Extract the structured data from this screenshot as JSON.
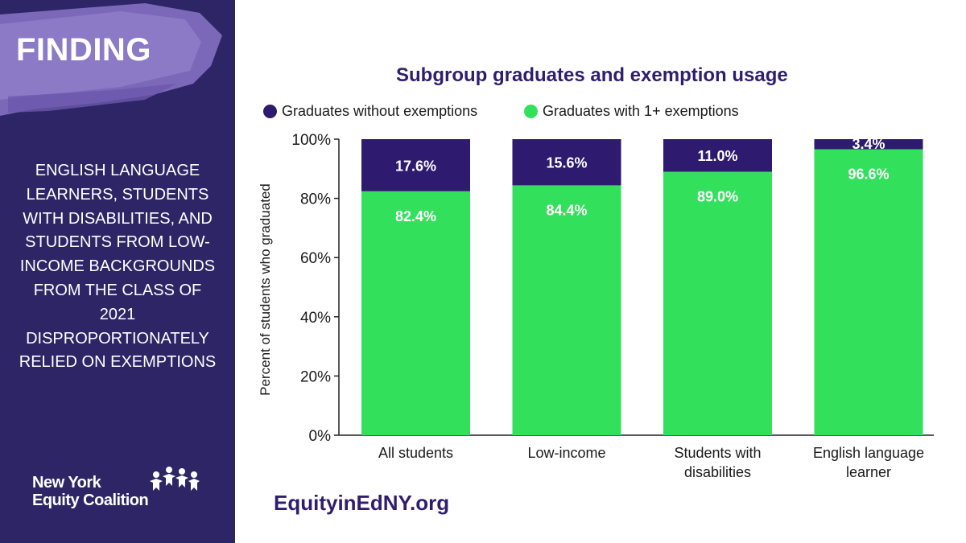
{
  "sidebar": {
    "label": "FINDING",
    "finding_text": "ENGLISH LANGUAGE LEARNERS, STUDENTS WITH DISABILITIES, AND STUDENTS FROM LOW-INCOME BACKGROUNDS FROM THE CLASS OF 2021 DISPROPORTIONATELY RELIED ON EXEMPTIONS",
    "logo_line1": "New York",
    "logo_line2": "Equity Coalition",
    "colors": {
      "background": "#2e2566",
      "brush_stroke": "#8b76c4"
    }
  },
  "footer": {
    "website": "EquityinEdNY.org"
  },
  "chart_data": {
    "type": "bar",
    "stacked": true,
    "title": "Subgroup graduates and exemption usage",
    "ylabel": "Percent of students who graduated",
    "xlabel": "",
    "ylim": [
      0,
      100
    ],
    "yticks": [
      0,
      20,
      40,
      60,
      80,
      100
    ],
    "ytick_labels": [
      "0%",
      "20%",
      "40%",
      "60%",
      "80%",
      "100%"
    ],
    "categories": [
      [
        "All students"
      ],
      [
        "Low-income"
      ],
      [
        "Students with",
        "disabilities"
      ],
      [
        "English language",
        "learner"
      ]
    ],
    "series": [
      {
        "name": "Graduates with 1+ exemptions",
        "color": "#33e05c",
        "values": [
          82.4,
          84.4,
          89.0,
          96.6
        ],
        "labels": [
          "82.4%",
          "84.4%",
          "89.0%",
          "96.6%"
        ]
      },
      {
        "name": "Graduates without exemptions",
        "color": "#2e1a6e",
        "values": [
          17.6,
          15.6,
          11.0,
          3.4
        ],
        "labels": [
          "17.6%",
          "15.6%",
          "11.0%",
          "3.4%"
        ]
      }
    ],
    "legend": {
      "placement": "top",
      "order": [
        "Graduates without exemptions",
        "Graduates with 1+ exemptions"
      ]
    },
    "grid": false
  }
}
